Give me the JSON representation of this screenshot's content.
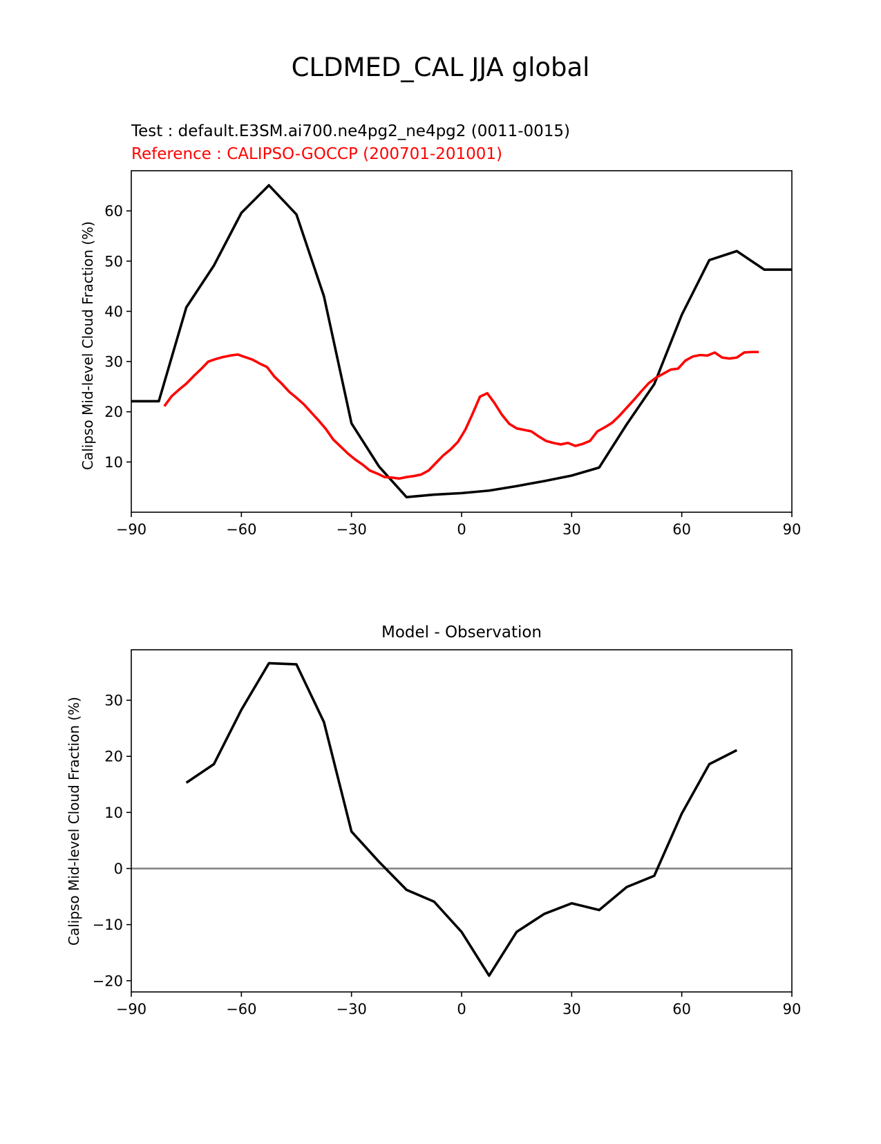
{
  "figure": {
    "title": "CLDMED_CAL JJA global"
  },
  "chart_data": [
    {
      "type": "line",
      "title_test": "Test : default.E3SM.ai700.ne4pg2_ne4pg2 (0011-0015)",
      "title_reference": "Reference : CALIPSO-GOCCP (200701-201001)",
      "xlabel": "",
      "ylabel": "Calipso Mid-level Cloud Fraction (%)",
      "xlim": [
        -90,
        90
      ],
      "ylim": [
        0,
        68
      ],
      "xticks": [
        "−90",
        "−60",
        "−30",
        "0",
        "30",
        "60",
        "90"
      ],
      "xtick_values": [
        -90,
        -60,
        -30,
        0,
        30,
        60,
        90
      ],
      "yticks": [
        "10",
        "20",
        "30",
        "40",
        "50",
        "60"
      ],
      "ytick_values": [
        10,
        20,
        30,
        40,
        50,
        60
      ],
      "grid": false,
      "series": [
        {
          "color": "#000000",
          "x": [
            -90,
            -82.5,
            -75,
            -67.5,
            -60,
            -52.5,
            -45,
            -37.5,
            -30,
            -22.5,
            -15,
            -7.5,
            0,
            7.5,
            15,
            22.5,
            30,
            37.5,
            45,
            52.5,
            60,
            67.5,
            75,
            82.5,
            90
          ],
          "y": [
            22.1,
            22.1,
            40.8,
            49.1,
            59.6,
            65.1,
            59.3,
            43,
            17.7,
            9.1,
            3,
            3.5,
            3.8,
            4.3,
            5.2,
            6.2,
            7.3,
            8.9,
            17.5,
            25.5,
            39.3,
            50.2,
            52,
            48.3,
            48.3
          ]
        },
        {
          "color": "#ff0000",
          "x": [
            -81,
            -79,
            -77,
            -75,
            -73,
            -71,
            -69,
            -67,
            -65,
            -63,
            -61,
            -59,
            -57,
            -55,
            -53,
            -51,
            -49,
            -47,
            -45,
            -43,
            -41,
            -39,
            -37,
            -35,
            -33,
            -31,
            -29,
            -27,
            -25,
            -23,
            -21,
            -19,
            -17,
            -15,
            -13,
            -11,
            -9,
            -7,
            -5,
            -3,
            -1,
            1,
            3,
            5,
            7,
            9,
            11,
            13,
            15,
            17,
            19,
            21,
            23,
            25,
            27,
            29,
            31,
            33,
            35,
            37,
            39,
            41,
            43,
            45,
            47,
            49,
            51,
            53,
            55,
            57,
            59,
            61,
            63,
            65,
            67,
            69,
            71,
            73,
            75,
            77,
            79,
            81
          ],
          "y": [
            21.1,
            23.1,
            24.4,
            25.6,
            27.1,
            28.5,
            30,
            30.5,
            30.9,
            31.2,
            31.4,
            30.9,
            30.4,
            29.6,
            28.9,
            27,
            25.6,
            24,
            22.8,
            21.5,
            19.9,
            18.3,
            16.6,
            14.5,
            13.1,
            11.7,
            10.5,
            9.5,
            8.3,
            7.7,
            7,
            6.9,
            6.7,
            7,
            7.2,
            7.5,
            8.3,
            9.8,
            11.3,
            12.5,
            14,
            16.4,
            19.6,
            23,
            23.7,
            21.7,
            19.4,
            17.6,
            16.7,
            16.4,
            16.1,
            15.1,
            14.2,
            13.8,
            13.5,
            13.8,
            13.2,
            13.6,
            14.2,
            16.1,
            16.9,
            17.8,
            19.2,
            20.8,
            22.4,
            24.1,
            25.7,
            26.8,
            27.6,
            28.4,
            28.6,
            30.2,
            31,
            31.3,
            31.2,
            31.8,
            30.8,
            30.6,
            30.8,
            31.8,
            31.9,
            31.9
          ]
        }
      ]
    },
    {
      "type": "line",
      "title": "Model - Observation",
      "xlabel": "",
      "ylabel": "Calipso Mid-level Cloud Fraction (%)",
      "xlim": [
        -90,
        90
      ],
      "ylim": [
        -22,
        39
      ],
      "xticks": [
        "−90",
        "−60",
        "−30",
        "0",
        "30",
        "60",
        "90"
      ],
      "xtick_values": [
        -90,
        -60,
        -30,
        0,
        30,
        60,
        90
      ],
      "yticks": [
        "−20",
        "−10",
        "0",
        "10",
        "20",
        "30"
      ],
      "ytick_values": [
        -20,
        -10,
        0,
        10,
        20,
        30
      ],
      "grid": false,
      "zero_line_color": "#808080",
      "series": [
        {
          "color": "#000000",
          "x": [
            -75,
            -67.5,
            -60,
            -52.5,
            -45,
            -37.5,
            -30,
            -22.5,
            -15,
            -7.5,
            0,
            7.5,
            15,
            22.5,
            30,
            37.5,
            45,
            52.5,
            60,
            67.5,
            75
          ],
          "y": [
            15.3,
            18.6,
            28.3,
            36.6,
            36.4,
            26.1,
            6.6,
            1.2,
            -3.8,
            -5.9,
            -11.3,
            -19.1,
            -11.3,
            -8.1,
            -6.2,
            -7.4,
            -3.3,
            -1.3,
            9.8,
            18.6,
            21.1
          ]
        }
      ]
    }
  ]
}
